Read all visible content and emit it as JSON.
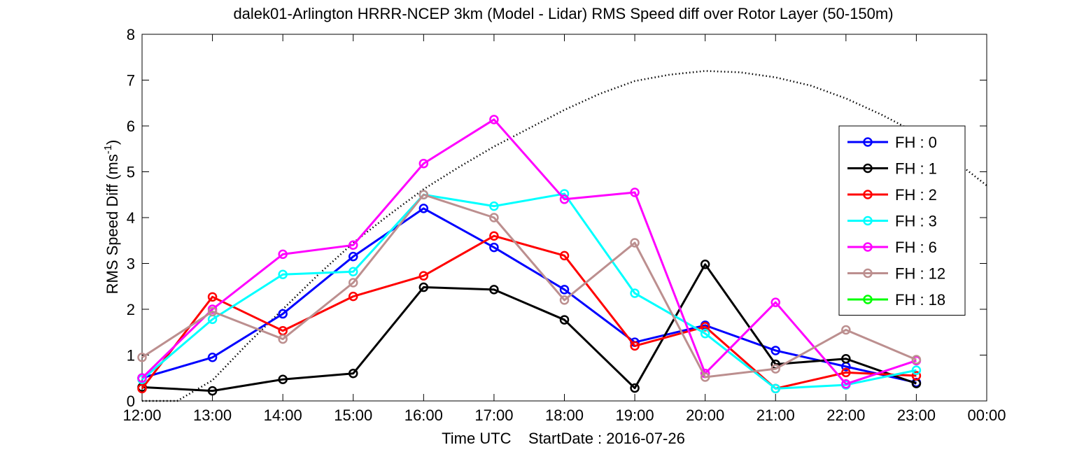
{
  "chart_data": {
    "type": "line",
    "title": "dalek01-Arlington HRRR-NCEP 3km (Model - Lidar) RMS Speed diff over Rotor Layer (50-150m)",
    "xlabel": "Time UTC    StartDate : 2016-07-26",
    "ylabel_main": "RMS Speed Diff (ms",
    "ylabel_sup": "-1",
    "ylabel_close": ")",
    "x_tick_labels": [
      "12:00",
      "13:00",
      "14:00",
      "15:00",
      "16:00",
      "17:00",
      "18:00",
      "19:00",
      "20:00",
      "21:00",
      "22:00",
      "23:00",
      "00:00"
    ],
    "xlim": [
      0,
      12
    ],
    "ylim": [
      0,
      8
    ],
    "y_ticks": [
      0,
      1,
      2,
      3,
      4,
      5,
      6,
      7,
      8
    ],
    "grid": false,
    "legend_position": "right",
    "series": [
      {
        "name": "FH : 0",
        "color": "#0000ff",
        "values": [
          0.5,
          0.95,
          1.9,
          3.15,
          4.2,
          3.35,
          2.43,
          1.28,
          1.65,
          1.1,
          0.75,
          0.4
        ]
      },
      {
        "name": "FH : 1",
        "color": "#000000",
        "values": [
          0.3,
          0.22,
          0.47,
          0.6,
          2.48,
          2.43,
          1.77,
          0.28,
          2.98,
          0.8,
          0.92,
          0.38
        ]
      },
      {
        "name": "FH : 2",
        "color": "#ff0000",
        "values": [
          0.27,
          2.27,
          1.53,
          2.28,
          2.73,
          3.6,
          3.17,
          1.2,
          1.62,
          0.27,
          0.62,
          0.55
        ]
      },
      {
        "name": "FH : 3",
        "color": "#00ffff",
        "values": [
          0.47,
          1.78,
          2.76,
          2.82,
          4.5,
          4.25,
          4.52,
          2.35,
          1.47,
          0.27,
          0.35,
          0.67
        ]
      },
      {
        "name": "FH : 6",
        "color": "#ff00ff",
        "values": [
          0.5,
          2.0,
          3.2,
          3.4,
          5.18,
          6.14,
          4.4,
          4.55,
          0.6,
          2.15,
          0.37,
          0.88
        ]
      },
      {
        "name": "FH : 12",
        "color": "#bc8f8f",
        "values": [
          0.95,
          1.95,
          1.35,
          2.58,
          4.5,
          4.0,
          2.2,
          3.45,
          0.52,
          0.7,
          1.55,
          0.9
        ]
      },
      {
        "name": "FH : 18",
        "color": "#00ff00",
        "values": []
      }
    ],
    "reference_curve": {
      "style": "dotted",
      "color": "#000000",
      "x": [
        0,
        0.5,
        1,
        1.5,
        2,
        2.5,
        3,
        3.5,
        4,
        4.5,
        5,
        5.5,
        6,
        6.5,
        7,
        7.5,
        8,
        8.5,
        9,
        9.5,
        10,
        10.5,
        11,
        11.5,
        12
      ],
      "y": [
        0,
        0,
        0.45,
        1.25,
        2.0,
        2.75,
        3.45,
        4.05,
        4.62,
        5.1,
        5.55,
        5.95,
        6.35,
        6.7,
        6.98,
        7.12,
        7.2,
        7.17,
        7.06,
        6.88,
        6.6,
        6.25,
        5.85,
        5.3,
        4.7
      ]
    }
  }
}
